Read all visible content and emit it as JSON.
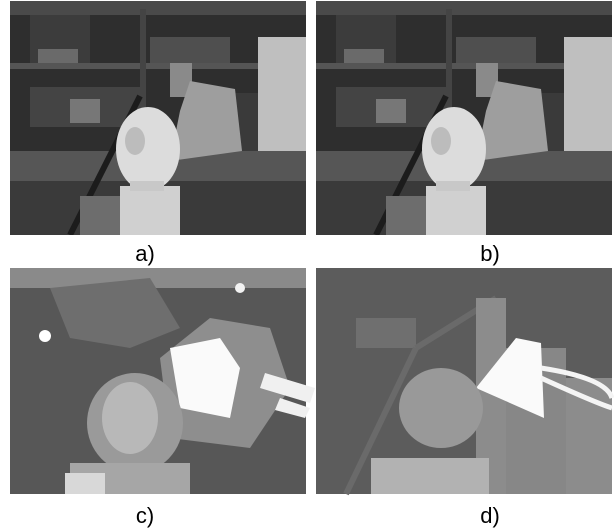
{
  "figure": {
    "panels": [
      {
        "label": "a)"
      },
      {
        "label": "b)"
      },
      {
        "label": "c)"
      },
      {
        "label": "d)"
      }
    ]
  }
}
